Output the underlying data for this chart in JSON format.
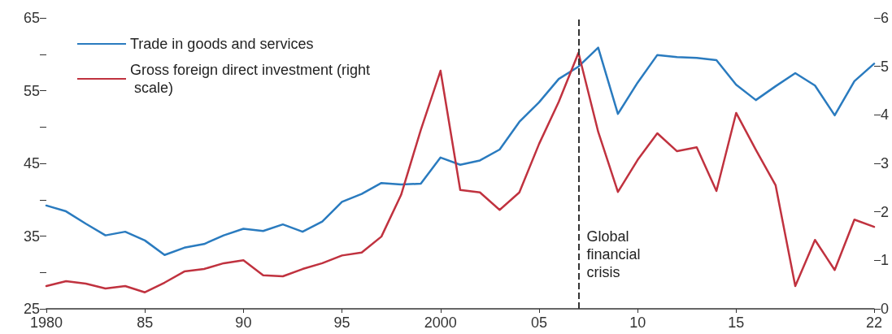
{
  "chart_data": {
    "type": "line",
    "x": [
      1980,
      1981,
      1982,
      1983,
      1984,
      1985,
      1986,
      1987,
      1988,
      1989,
      1990,
      1991,
      1992,
      1993,
      1994,
      1995,
      1996,
      1997,
      1998,
      1999,
      2000,
      2001,
      2002,
      2003,
      2004,
      2005,
      2006,
      2007,
      2008,
      2009,
      2010,
      2011,
      2012,
      2013,
      2014,
      2015,
      2016,
      2017,
      2018,
      2019,
      2020,
      2021,
      2022
    ],
    "series": [
      {
        "name": "Trade in goods and services",
        "color": "#2a7bbf",
        "values": [
          39.2,
          38.4,
          36.7,
          35.1,
          35.6,
          34.4,
          32.4,
          33.4,
          33.9,
          35.1,
          36.0,
          35.7,
          36.6,
          35.6,
          37.0,
          39.7,
          40.8,
          42.3,
          42.1,
          42.2,
          45.8,
          44.8,
          45.4,
          46.9,
          50.7,
          53.4,
          56.6,
          58.3,
          60.9,
          51.8,
          56.1,
          59.9,
          59.6,
          59.5,
          59.2,
          55.8,
          53.7,
          55.6,
          57.4,
          55.7,
          51.6,
          56.3,
          58.7
        ]
      },
      {
        "name": "Gross foreign direct investment (right scale)",
        "color": "#c0323f",
        "axis": "y2",
        "values": [
          0.47,
          0.57,
          0.52,
          0.42,
          0.47,
          0.34,
          0.54,
          0.77,
          0.82,
          0.94,
          1.0,
          0.69,
          0.67,
          0.82,
          0.94,
          1.1,
          1.16,
          1.49,
          2.35,
          3.69,
          4.91,
          2.45,
          2.4,
          2.04,
          2.4,
          3.4,
          4.27,
          5.28,
          3.65,
          2.41,
          3.07,
          3.62,
          3.25,
          3.33,
          2.43,
          4.04,
          3.28,
          2.55,
          0.47,
          1.42,
          0.8,
          1.84,
          1.69
        ]
      }
    ],
    "xlim": [
      1980,
      2022
    ],
    "xticks": [
      1980,
      {
        "value": 1985,
        "label": "85"
      },
      {
        "value": 1990,
        "label": "90"
      },
      {
        "value": 1995,
        "label": "95"
      },
      2000,
      {
        "value": 2005,
        "label": "05"
      },
      {
        "value": 2010,
        "label": "10"
      },
      {
        "value": 2015,
        "label": "15"
      },
      {
        "value": 2022,
        "label": "22"
      }
    ],
    "ylim": [
      25,
      65
    ],
    "yticks": [
      25,
      {
        "value": 30,
        "label": null
      },
      35,
      {
        "value": 40,
        "label": null
      },
      45,
      {
        "value": 50,
        "label": null
      },
      55,
      {
        "value": 60,
        "label": null
      },
      65
    ],
    "y2lim": [
      0,
      6
    ],
    "y2ticks": [
      0,
      1,
      2,
      3,
      4,
      5,
      6
    ],
    "ref_lines": [
      {
        "axis": "x",
        "value": 2007,
        "label": "Global financial crisis",
        "color": "#333333",
        "line_style": "dashed"
      }
    ],
    "legend": "top left",
    "grid": false,
    "marker": "none",
    "line_style": "solid"
  }
}
